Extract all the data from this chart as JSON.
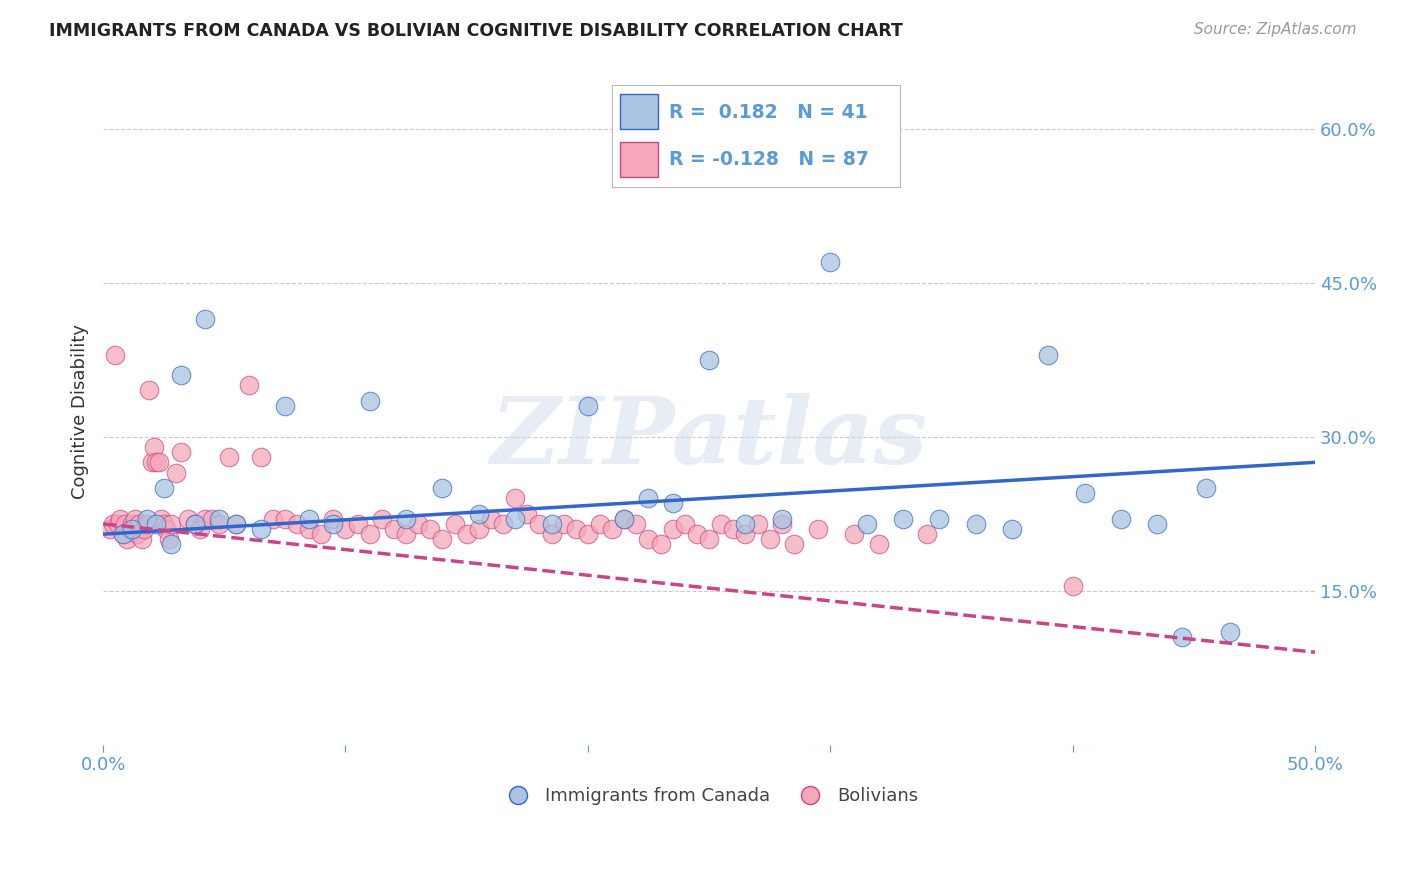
{
  "title": "IMMIGRANTS FROM CANADA VS BOLIVIAN COGNITIVE DISABILITY CORRELATION CHART",
  "source": "Source: ZipAtlas.com",
  "ylabel": "Cognitive Disability",
  "watermark": "ZIPatlas",
  "xlim": [
    0.0,
    0.5
  ],
  "ylim": [
    0.0,
    0.65
  ],
  "xticks": [
    0.0,
    0.1,
    0.2,
    0.3,
    0.4,
    0.5
  ],
  "xticklabels": [
    "0.0%",
    "",
    "",
    "",
    "",
    "50.0%"
  ],
  "yticks": [
    0.0,
    0.15,
    0.3,
    0.45,
    0.6
  ],
  "yticklabels": [
    "",
    "15.0%",
    "30.0%",
    "45.0%",
    "60.0%"
  ],
  "blue_R": 0.182,
  "blue_N": 41,
  "pink_R": -0.128,
  "pink_N": 87,
  "blue_color": "#a8c4e0",
  "pink_color": "#f4a8b8",
  "blue_line_color": "#3366cc",
  "pink_line_color": "#cc4488",
  "legend_label_blue": "Immigrants from Canada",
  "legend_label_pink": "Bolivians",
  "blue_points_x": [
    0.008,
    0.012,
    0.018,
    0.022,
    0.025,
    0.028,
    0.032,
    0.038,
    0.042,
    0.048,
    0.055,
    0.065,
    0.075,
    0.085,
    0.095,
    0.11,
    0.125,
    0.14,
    0.155,
    0.17,
    0.185,
    0.2,
    0.215,
    0.225,
    0.235,
    0.25,
    0.265,
    0.28,
    0.3,
    0.315,
    0.33,
    0.345,
    0.36,
    0.375,
    0.39,
    0.405,
    0.42,
    0.435,
    0.445,
    0.455,
    0.465
  ],
  "blue_points_y": [
    0.205,
    0.21,
    0.22,
    0.215,
    0.25,
    0.195,
    0.36,
    0.215,
    0.415,
    0.22,
    0.215,
    0.21,
    0.33,
    0.22,
    0.215,
    0.335,
    0.22,
    0.25,
    0.225,
    0.22,
    0.215,
    0.33,
    0.22,
    0.24,
    0.235,
    0.375,
    0.215,
    0.22,
    0.47,
    0.215,
    0.22,
    0.22,
    0.215,
    0.21,
    0.38,
    0.245,
    0.22,
    0.215,
    0.105,
    0.25,
    0.11
  ],
  "pink_points_x": [
    0.003,
    0.004,
    0.005,
    0.006,
    0.007,
    0.008,
    0.009,
    0.01,
    0.011,
    0.012,
    0.013,
    0.014,
    0.015,
    0.016,
    0.017,
    0.018,
    0.019,
    0.02,
    0.021,
    0.022,
    0.023,
    0.024,
    0.025,
    0.026,
    0.027,
    0.028,
    0.03,
    0.032,
    0.035,
    0.038,
    0.04,
    0.042,
    0.045,
    0.048,
    0.052,
    0.055,
    0.06,
    0.065,
    0.07,
    0.075,
    0.08,
    0.085,
    0.09,
    0.095,
    0.1,
    0.105,
    0.11,
    0.115,
    0.12,
    0.125,
    0.13,
    0.135,
    0.14,
    0.145,
    0.15,
    0.155,
    0.16,
    0.165,
    0.17,
    0.175,
    0.18,
    0.185,
    0.19,
    0.195,
    0.2,
    0.205,
    0.21,
    0.215,
    0.22,
    0.225,
    0.23,
    0.235,
    0.24,
    0.245,
    0.25,
    0.255,
    0.26,
    0.265,
    0.27,
    0.275,
    0.28,
    0.285,
    0.295,
    0.31,
    0.32,
    0.34,
    0.4
  ],
  "pink_points_y": [
    0.21,
    0.215,
    0.38,
    0.215,
    0.22,
    0.205,
    0.215,
    0.2,
    0.21,
    0.215,
    0.22,
    0.205,
    0.215,
    0.2,
    0.21,
    0.215,
    0.345,
    0.275,
    0.29,
    0.275,
    0.275,
    0.22,
    0.215,
    0.21,
    0.2,
    0.215,
    0.265,
    0.285,
    0.22,
    0.215,
    0.21,
    0.22,
    0.22,
    0.215,
    0.28,
    0.215,
    0.35,
    0.28,
    0.22,
    0.22,
    0.215,
    0.21,
    0.205,
    0.22,
    0.21,
    0.215,
    0.205,
    0.22,
    0.21,
    0.205,
    0.215,
    0.21,
    0.2,
    0.215,
    0.205,
    0.21,
    0.22,
    0.215,
    0.24,
    0.225,
    0.215,
    0.205,
    0.215,
    0.21,
    0.205,
    0.215,
    0.21,
    0.22,
    0.215,
    0.2,
    0.195,
    0.21,
    0.215,
    0.205,
    0.2,
    0.215,
    0.21,
    0.205,
    0.215,
    0.2,
    0.215,
    0.195,
    0.21,
    0.205,
    0.195,
    0.205,
    0.155
  ],
  "background_color": "#ffffff",
  "grid_color": "#cccccc",
  "axis_color": "#5b9bd5",
  "title_color": "#222222",
  "ylabel_color": "#333333",
  "watermark_color": "#c8d8e8",
  "watermark_alpha": 0.45,
  "blue_line_start_y": 0.205,
  "blue_line_end_y": 0.275,
  "pink_line_start_y": 0.215,
  "pink_line_end_y": 0.09
}
